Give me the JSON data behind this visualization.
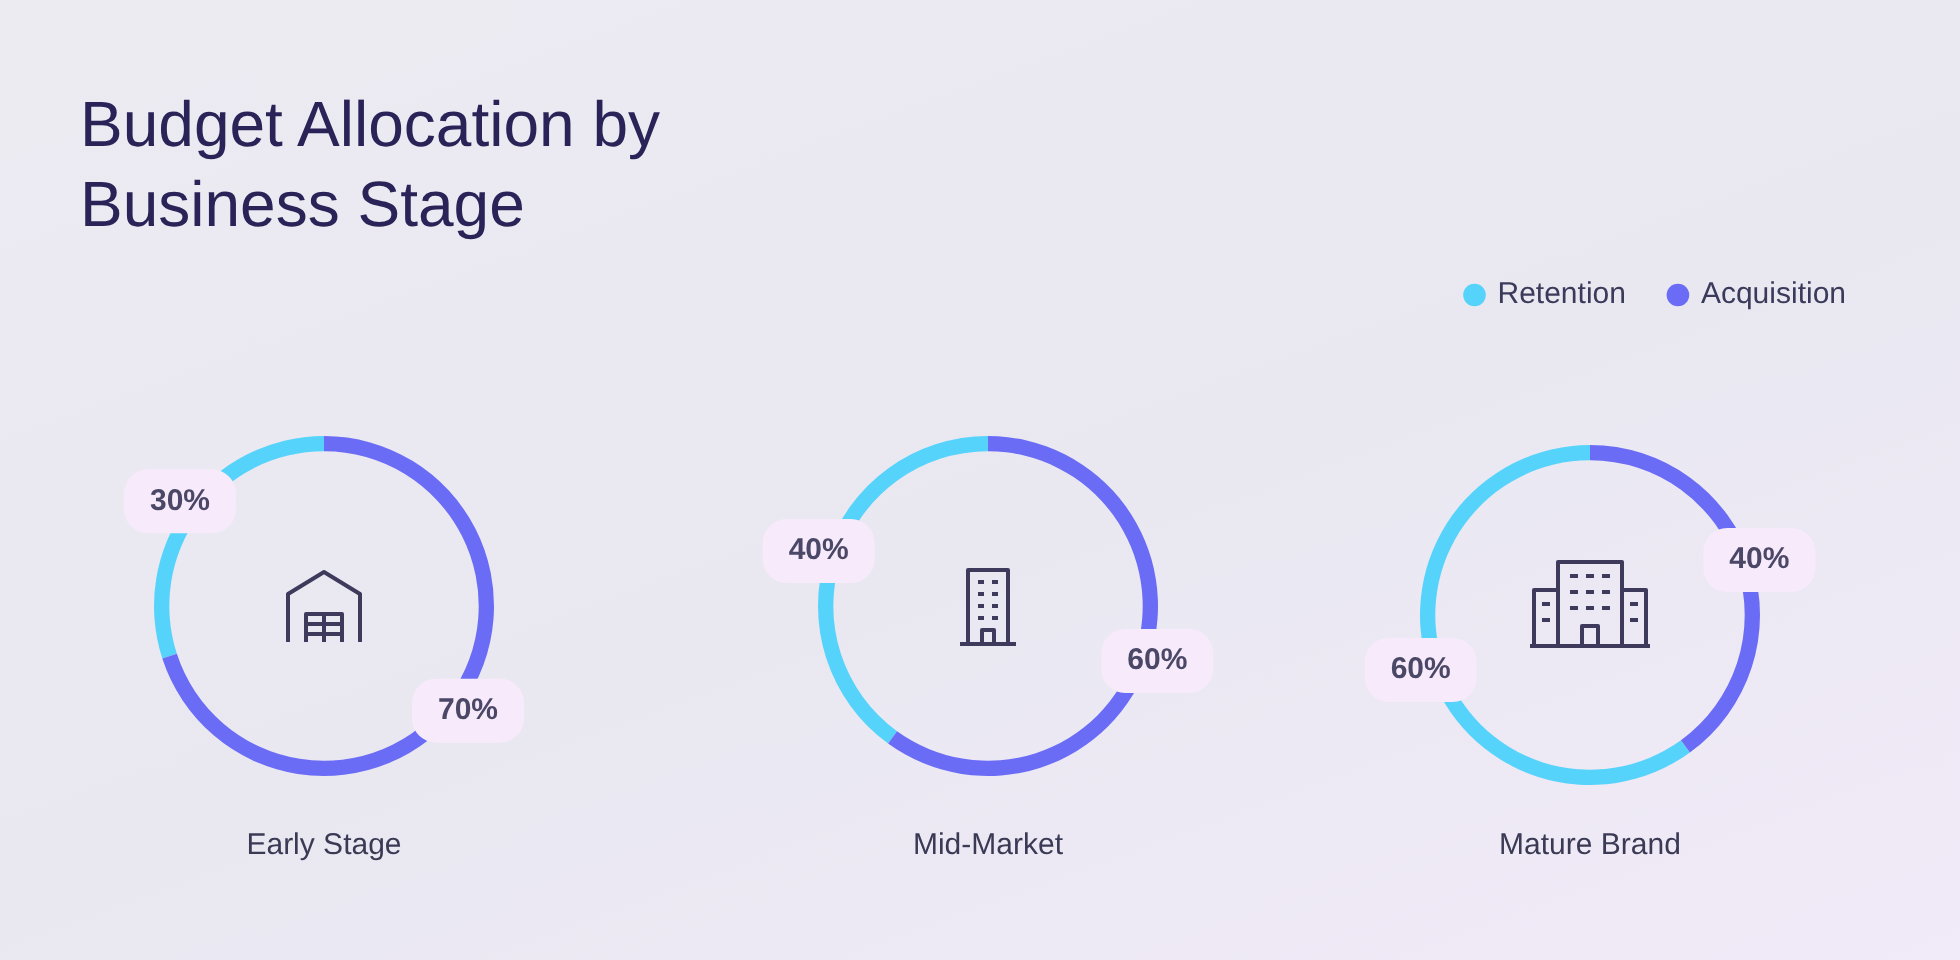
{
  "chart_data": [
    {
      "type": "donut",
      "title": "Budget Allocation by Business Stage",
      "xlabel": "Early Stage",
      "categories": [
        null,
        null
      ],
      "values": [
        30,
        70
      ],
      "colors": [
        "#56d3fb",
        "#6b6cf6"
      ],
      "value_labels": [
        "30%",
        "70%"
      ]
    },
    {
      "type": "donut",
      "xlabel": "Mid-Market",
      "categories": [
        null,
        null
      ],
      "values": [
        40,
        60
      ],
      "colors": [
        "#56d3fb",
        "#6b6cf6"
      ],
      "value_labels": [
        "40%",
        "60%"
      ]
    },
    {
      "type": "donut",
      "xlabel": "Mature Brand",
      "categories": [
        "Retention",
        "Acquisition"
      ],
      "values": [
        60,
        40
      ],
      "colors": [
        "#56d3fb",
        "#6b6cf6"
      ],
      "value_labels": [
        "60%",
        "40%"
      ],
      "legend": "top right"
    }
  ]
}
